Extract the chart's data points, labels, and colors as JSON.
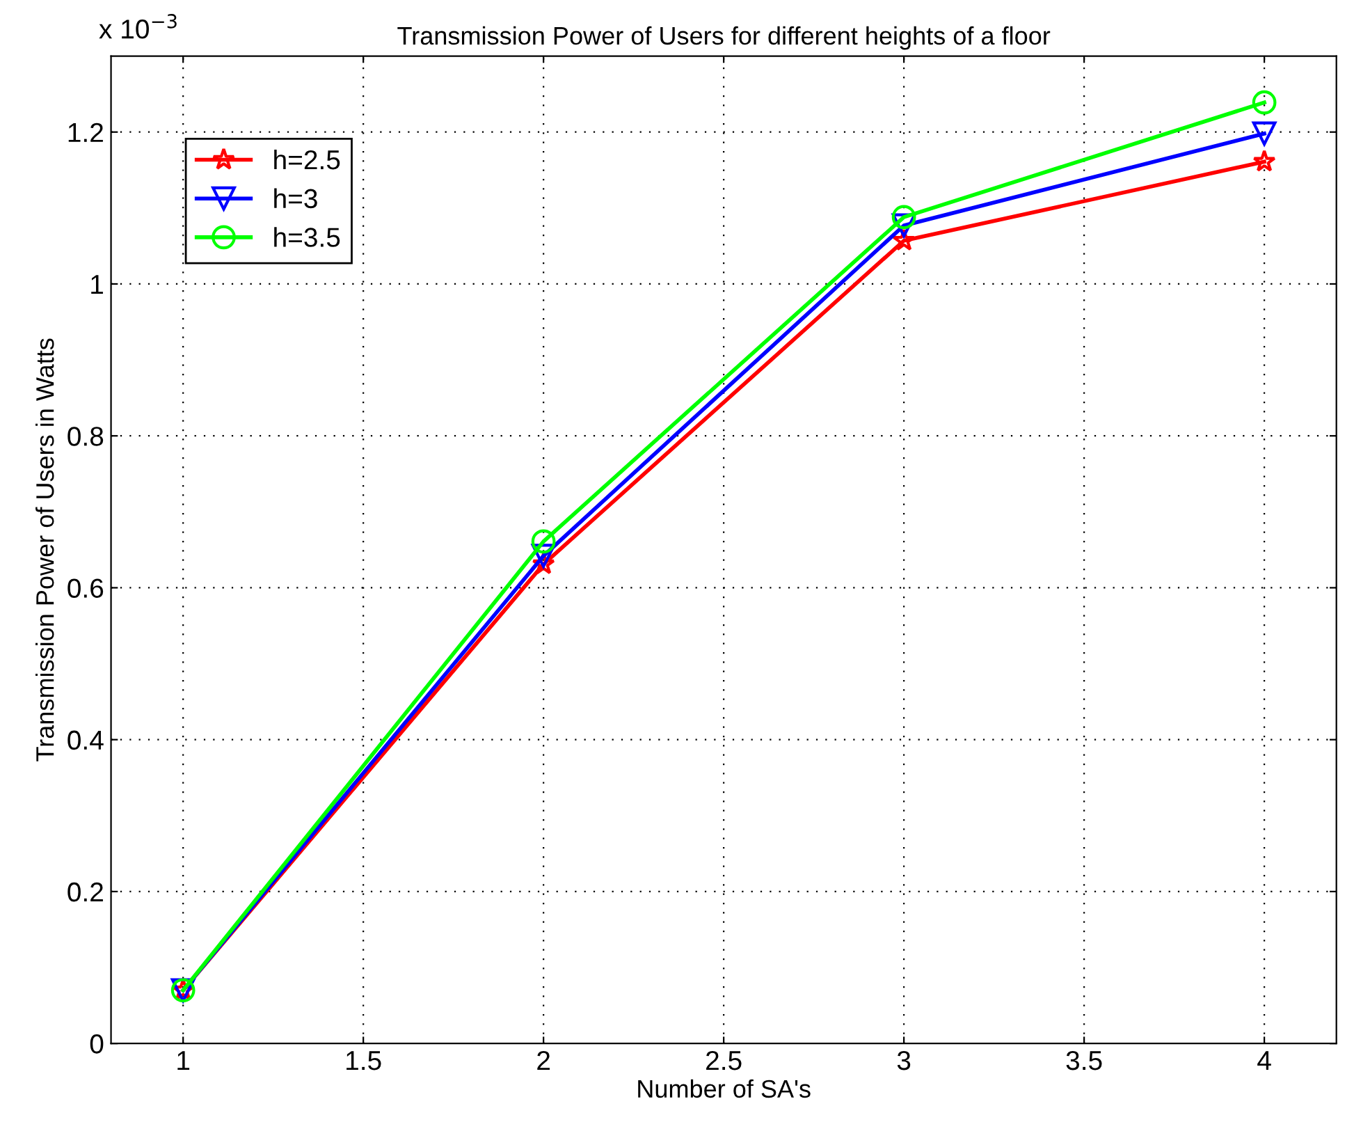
{
  "chart_data": {
    "type": "line",
    "title": "Transmission Power of Users for different heights of a floor",
    "xlabel": "Number of SA's",
    "ylabel": "Transmission Power of Users in Watts",
    "annotations": [
      "x 10$^{−3}$"
    ],
    "x": [
      1,
      2,
      3,
      4
    ],
    "series": [
      {
        "name": "h=2.5",
        "color": "#ff0000",
        "marker": "star",
        "values": [
          0.07,
          0.631,
          1.057,
          1.161
        ]
      },
      {
        "name": "h=3",
        "color": "#0000ff",
        "marker": "triangle",
        "values": [
          0.07,
          0.642,
          1.077,
          1.198
        ]
      },
      {
        "name": "h=3.5",
        "color": "#00ff00",
        "marker": "circle",
        "values": [
          0.07,
          0.661,
          1.088,
          1.239
        ]
      }
    ],
    "xlim": [
      0.8,
      4.2
    ],
    "xticks": [
      1,
      1.5,
      2,
      2.5,
      3,
      3.5,
      4
    ],
    "ylim": [
      0,
      1.3
    ],
    "yticks": [
      0,
      0.2,
      0.4,
      0.6,
      0.8,
      1,
      1.2
    ],
    "grid": true,
    "legend": "top left",
    "line_style": "solid"
  }
}
